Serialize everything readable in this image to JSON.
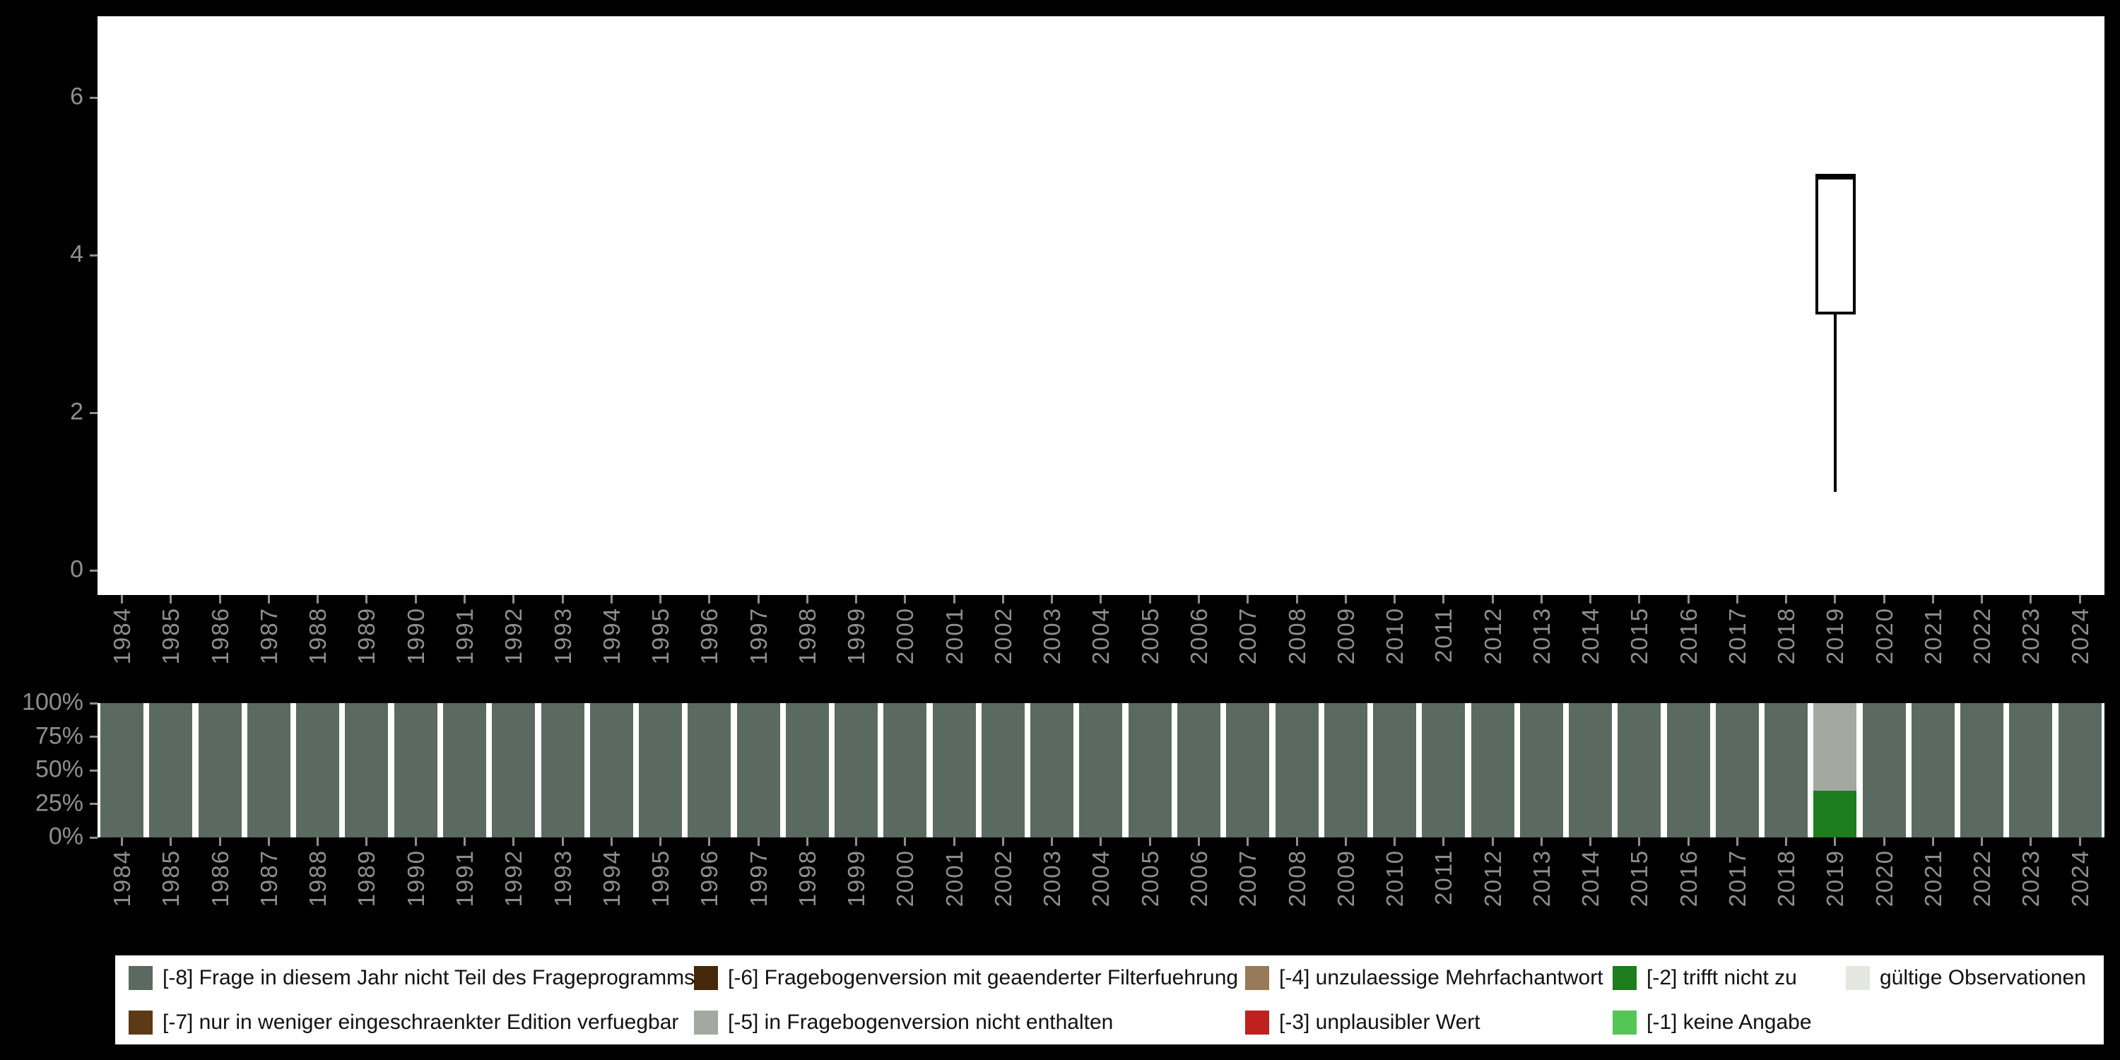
{
  "page": {
    "background": "#000000",
    "panel_background": "#ffffff",
    "axis_text_color": "#8f8f8f"
  },
  "chart_data": [
    {
      "type": "boxplot",
      "title": "",
      "categories": [
        "1984",
        "1985",
        "1986",
        "1987",
        "1988",
        "1989",
        "1990",
        "1991",
        "1992",
        "1993",
        "1994",
        "1995",
        "1996",
        "1997",
        "1998",
        "1999",
        "2000",
        "2001",
        "2002",
        "2003",
        "2004",
        "2005",
        "2006",
        "2007",
        "2008",
        "2009",
        "2010",
        "2011",
        "2012",
        "2013",
        "2014",
        "2015",
        "2016",
        "2017",
        "2018",
        "2019",
        "2020",
        "2021",
        "2022",
        "2023",
        "2024"
      ],
      "yticks": [
        0,
        2,
        4,
        6
      ],
      "ylim": [
        -0.3,
        7.0
      ],
      "grid": false,
      "boxes": [
        {
          "category": "2019",
          "whisker_low": 1.0,
          "q1": 3.25,
          "median": 5.0,
          "q3": 5.0,
          "whisker_high": 5.0
        }
      ]
    },
    {
      "type": "stacked-bar-percent",
      "title": "",
      "categories": [
        "1984",
        "1985",
        "1986",
        "1987",
        "1988",
        "1989",
        "1990",
        "1991",
        "1992",
        "1993",
        "1994",
        "1995",
        "1996",
        "1997",
        "1998",
        "1999",
        "2000",
        "2001",
        "2002",
        "2003",
        "2004",
        "2005",
        "2006",
        "2007",
        "2008",
        "2009",
        "2010",
        "2011",
        "2012",
        "2013",
        "2014",
        "2015",
        "2016",
        "2017",
        "2018",
        "2019",
        "2020",
        "2021",
        "2022",
        "2023",
        "2024"
      ],
      "yticks": [
        {
          "value": 100,
          "label": "100%"
        },
        {
          "value": 75,
          "label": "75%"
        },
        {
          "value": 50,
          "label": "50%"
        },
        {
          "value": 25,
          "label": "25%"
        },
        {
          "value": 0,
          "label": "0%"
        }
      ],
      "segments_default": [
        {
          "code": "-8",
          "label": "[-8] Frage in diesem Jahr nicht Teil des Frageprogramms",
          "color": "#5a6a60",
          "percent": 100
        }
      ],
      "segments_by_year": {
        "2019": [
          {
            "code": "-2",
            "label": "[-2] trifft nicht zu",
            "color": "#1e7d1e",
            "percent": 35
          },
          {
            "code": "-5",
            "label": "[-5] in Fragebogenversion nicht enthalten",
            "color": "#a3a9a0",
            "percent": 65
          }
        ]
      }
    }
  ],
  "legend": {
    "items": [
      {
        "code": "-8",
        "label": "[-8] Frage in diesem Jahr nicht Teil des Frageprogramms",
        "color": "#5a6a60"
      },
      {
        "code": "-7",
        "label": "[-7] nur in weniger eingeschraenkter Edition verfuegbar",
        "color": "#5b3a18"
      },
      {
        "code": "-6",
        "label": "[-6] Fragebogenversion mit geaenderter Filterfuehrung",
        "color": "#46290a"
      },
      {
        "code": "-5",
        "label": "[-5] in Fragebogenversion nicht enthalten",
        "color": "#a3a9a0"
      },
      {
        "code": "-4",
        "label": "[-4] unzulaessige Mehrfachantwort",
        "color": "#997a58"
      },
      {
        "code": "-3",
        "label": "[-3] unplausibler Wert",
        "color": "#bf2020"
      },
      {
        "code": "-2",
        "label": "[-2] trifft nicht zu",
        "color": "#1e7d1e"
      },
      {
        "code": "-1",
        "label": "[-1] keine Angabe",
        "color": "#55c556"
      },
      {
        "code": "valid",
        "label": "gültige Observationen",
        "color": "#e4e7e0"
      }
    ]
  }
}
